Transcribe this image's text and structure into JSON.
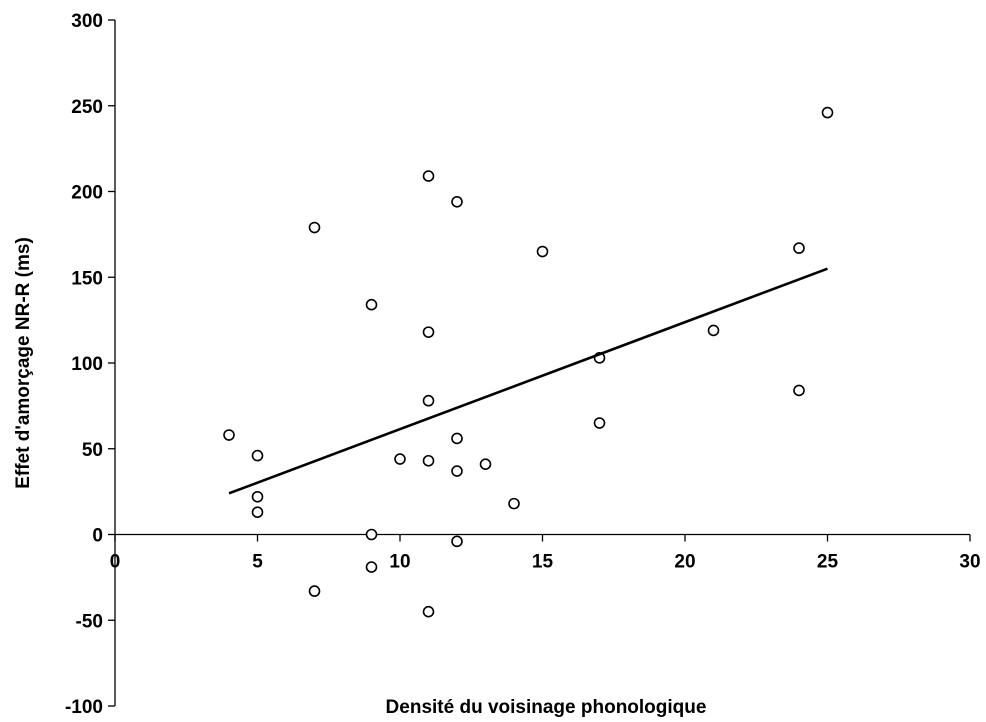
{
  "chart_data": {
    "type": "scatter",
    "title": "",
    "xlabel": "Densité du voisinage phonologique",
    "ylabel": "Effet d'amorçage NR-R (ms)",
    "xlim": [
      0,
      30
    ],
    "ylim": [
      -100,
      300
    ],
    "xticks": [
      0,
      5,
      10,
      15,
      20,
      25,
      30
    ],
    "yticks": [
      -100,
      -50,
      0,
      50,
      100,
      150,
      200,
      250,
      300
    ],
    "grid": false,
    "legend": "none",
    "series": [
      {
        "points": [
          {
            "x": 4,
            "y": 58
          },
          {
            "x": 5,
            "y": 46
          },
          {
            "x": 5,
            "y": 22
          },
          {
            "x": 5,
            "y": 13
          },
          {
            "x": 7,
            "y": 179
          },
          {
            "x": 7,
            "y": -33
          },
          {
            "x": 9,
            "y": 134
          },
          {
            "x": 9,
            "y": 0
          },
          {
            "x": 9,
            "y": -19
          },
          {
            "x": 10,
            "y": 44
          },
          {
            "x": 11,
            "y": 209
          },
          {
            "x": 11,
            "y": 118
          },
          {
            "x": 11,
            "y": 78
          },
          {
            "x": 11,
            "y": 43
          },
          {
            "x": 11,
            "y": -45
          },
          {
            "x": 12,
            "y": 194
          },
          {
            "x": 12,
            "y": 56
          },
          {
            "x": 12,
            "y": 37
          },
          {
            "x": 12,
            "y": -4
          },
          {
            "x": 13,
            "y": 41
          },
          {
            "x": 14,
            "y": 18
          },
          {
            "x": 15,
            "y": 165
          },
          {
            "x": 17,
            "y": 103
          },
          {
            "x": 17,
            "y": 65
          },
          {
            "x": 21,
            "y": 119
          },
          {
            "x": 24,
            "y": 167
          },
          {
            "x": 24,
            "y": 84
          },
          {
            "x": 25,
            "y": 246
          }
        ]
      }
    ],
    "trendline": {
      "x": [
        4,
        25
      ],
      "y": [
        24,
        155
      ]
    }
  }
}
